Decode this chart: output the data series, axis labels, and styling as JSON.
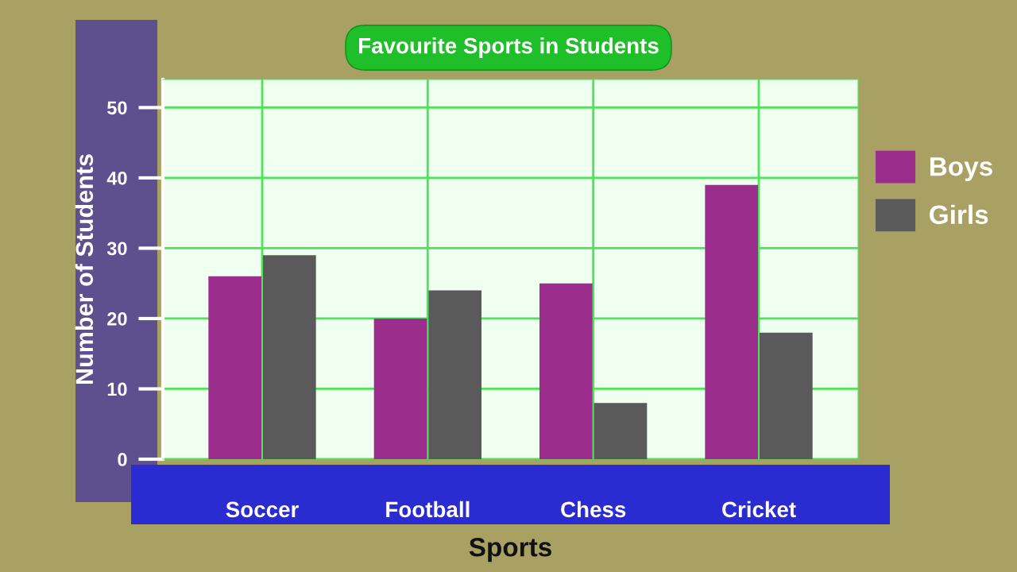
{
  "chart_data": {
    "type": "bar",
    "title": "Favourite Sports in Students",
    "xlabel": "Sports",
    "ylabel": "Number of Students",
    "categories": [
      "Soccer",
      "Football",
      "Chess",
      "Cricket"
    ],
    "series": [
      {
        "name": "Boys",
        "color": "#9b2d8c",
        "values": [
          26,
          20,
          25,
          39
        ]
      },
      {
        "name": "Girls",
        "color": "#5a5a5a",
        "values": [
          29,
          24,
          8,
          18
        ]
      }
    ],
    "ylim": [
      0,
      54
    ],
    "yticks": [
      0,
      10,
      20,
      30,
      40,
      50
    ],
    "grid": true,
    "legend": "top right"
  }
}
